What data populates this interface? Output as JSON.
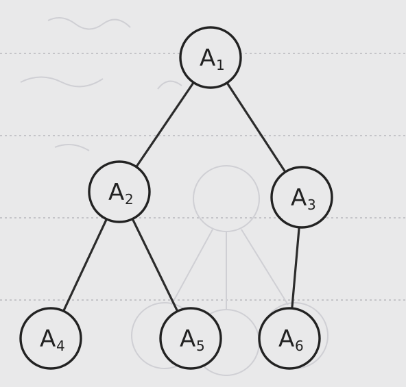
{
  "diagram": {
    "type": "binary-tree",
    "nodes": [
      {
        "id": "A1",
        "letter": "A",
        "sub": "1"
      },
      {
        "id": "A2",
        "letter": "A",
        "sub": "2"
      },
      {
        "id": "A3",
        "letter": "A",
        "sub": "3"
      },
      {
        "id": "A4",
        "letter": "A",
        "sub": "4"
      },
      {
        "id": "A5",
        "letter": "A",
        "sub": "5"
      },
      {
        "id": "A6",
        "letter": "A",
        "sub": "6"
      }
    ],
    "edges": [
      [
        "A1",
        "A2"
      ],
      [
        "A1",
        "A3"
      ],
      [
        "A2",
        "A4"
      ],
      [
        "A2",
        "A5"
      ],
      [
        "A3",
        "A6"
      ]
    ]
  },
  "colors": {
    "paper": "#e9e9ea",
    "ink": "#222222",
    "rule_lines": "#b8b8bd",
    "bleed_through": "#cfcfd4"
  }
}
